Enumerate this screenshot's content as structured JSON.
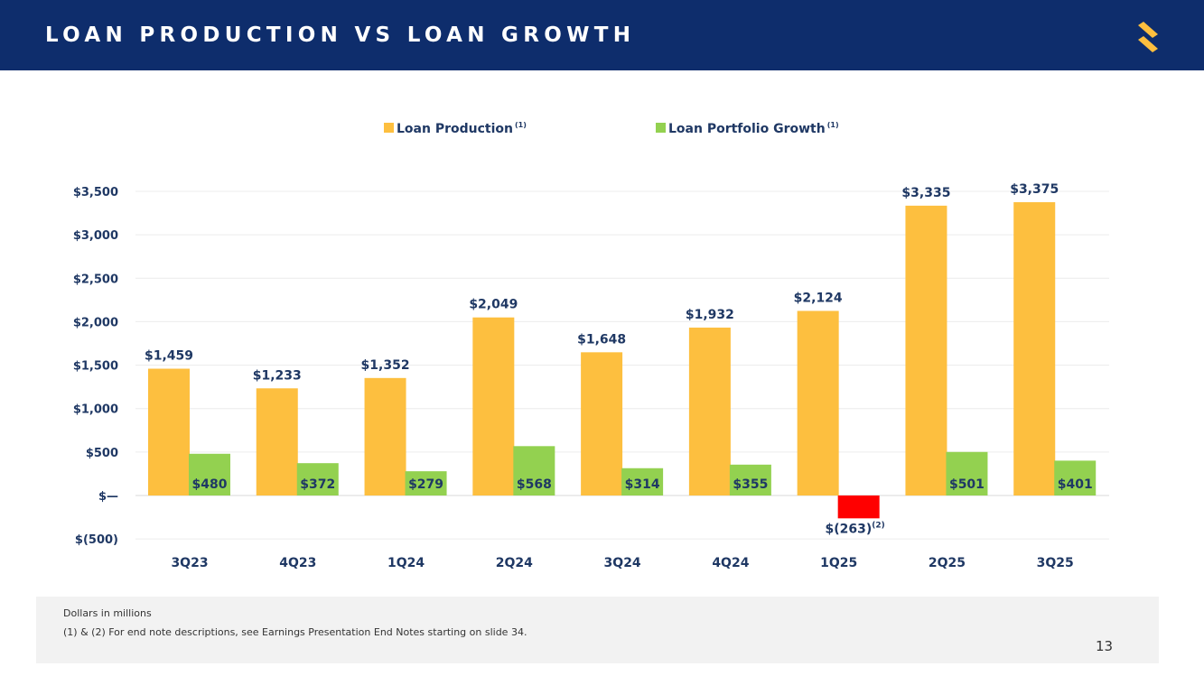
{
  "header": {
    "title": "LOAN PRODUCTION VS LOAN GROWTH",
    "logo_icon": "brand-s-logo-icon"
  },
  "colors": {
    "header_bg": "#0e2d6c",
    "production": "#fdbf3f",
    "growth": "#93d150",
    "negative": "#ff0000",
    "label_text": "#1f3864",
    "logo": "#fdbf3f"
  },
  "chart_data": {
    "type": "bar",
    "categories": [
      "3Q23",
      "4Q23",
      "1Q24",
      "2Q24",
      "3Q24",
      "4Q24",
      "1Q25",
      "2Q25",
      "3Q25"
    ],
    "series": [
      {
        "name": "Loan Production",
        "superscript": "(1)",
        "values": [
          1459,
          1233,
          1352,
          2049,
          1648,
          1932,
          2124,
          3335,
          3375
        ],
        "labels": [
          "$1,459",
          "$1,233",
          "$1,352",
          "$2,049",
          "$1,648",
          "$1,932",
          "$2,124",
          "$3,335",
          "$3,375"
        ]
      },
      {
        "name": "Loan Portfolio Growth",
        "superscript": "(1)",
        "values": [
          480,
          372,
          279,
          568,
          314,
          355,
          -263,
          501,
          401
        ],
        "labels": [
          "$480",
          "$372",
          "$279",
          "$568",
          "$314",
          "$355",
          "$(263)",
          "$501",
          "$401"
        ]
      }
    ],
    "annotations": [
      {
        "category": "1Q25",
        "series": "Loan Portfolio Growth",
        "text": "(2)"
      }
    ],
    "yticks": [
      -500,
      0,
      500,
      1000,
      1500,
      2000,
      2500,
      3000,
      3500
    ],
    "ytick_labels": [
      "$(500)",
      "$—",
      "$500",
      "$1,000",
      "$1,500",
      "$2,000",
      "$2,500",
      "$3,000",
      "$3,500"
    ],
    "ylim": [
      -500,
      3500
    ],
    "legend_position": "top-center",
    "grid": true,
    "title": "",
    "xlabel": "",
    "ylabel": ""
  },
  "footer": {
    "note_units": "Dollars in millions",
    "note_endnotes": "(1) & (2)  For end note descriptions, see Earnings Presentation End Notes starting on slide 34."
  },
  "page_number": "13"
}
